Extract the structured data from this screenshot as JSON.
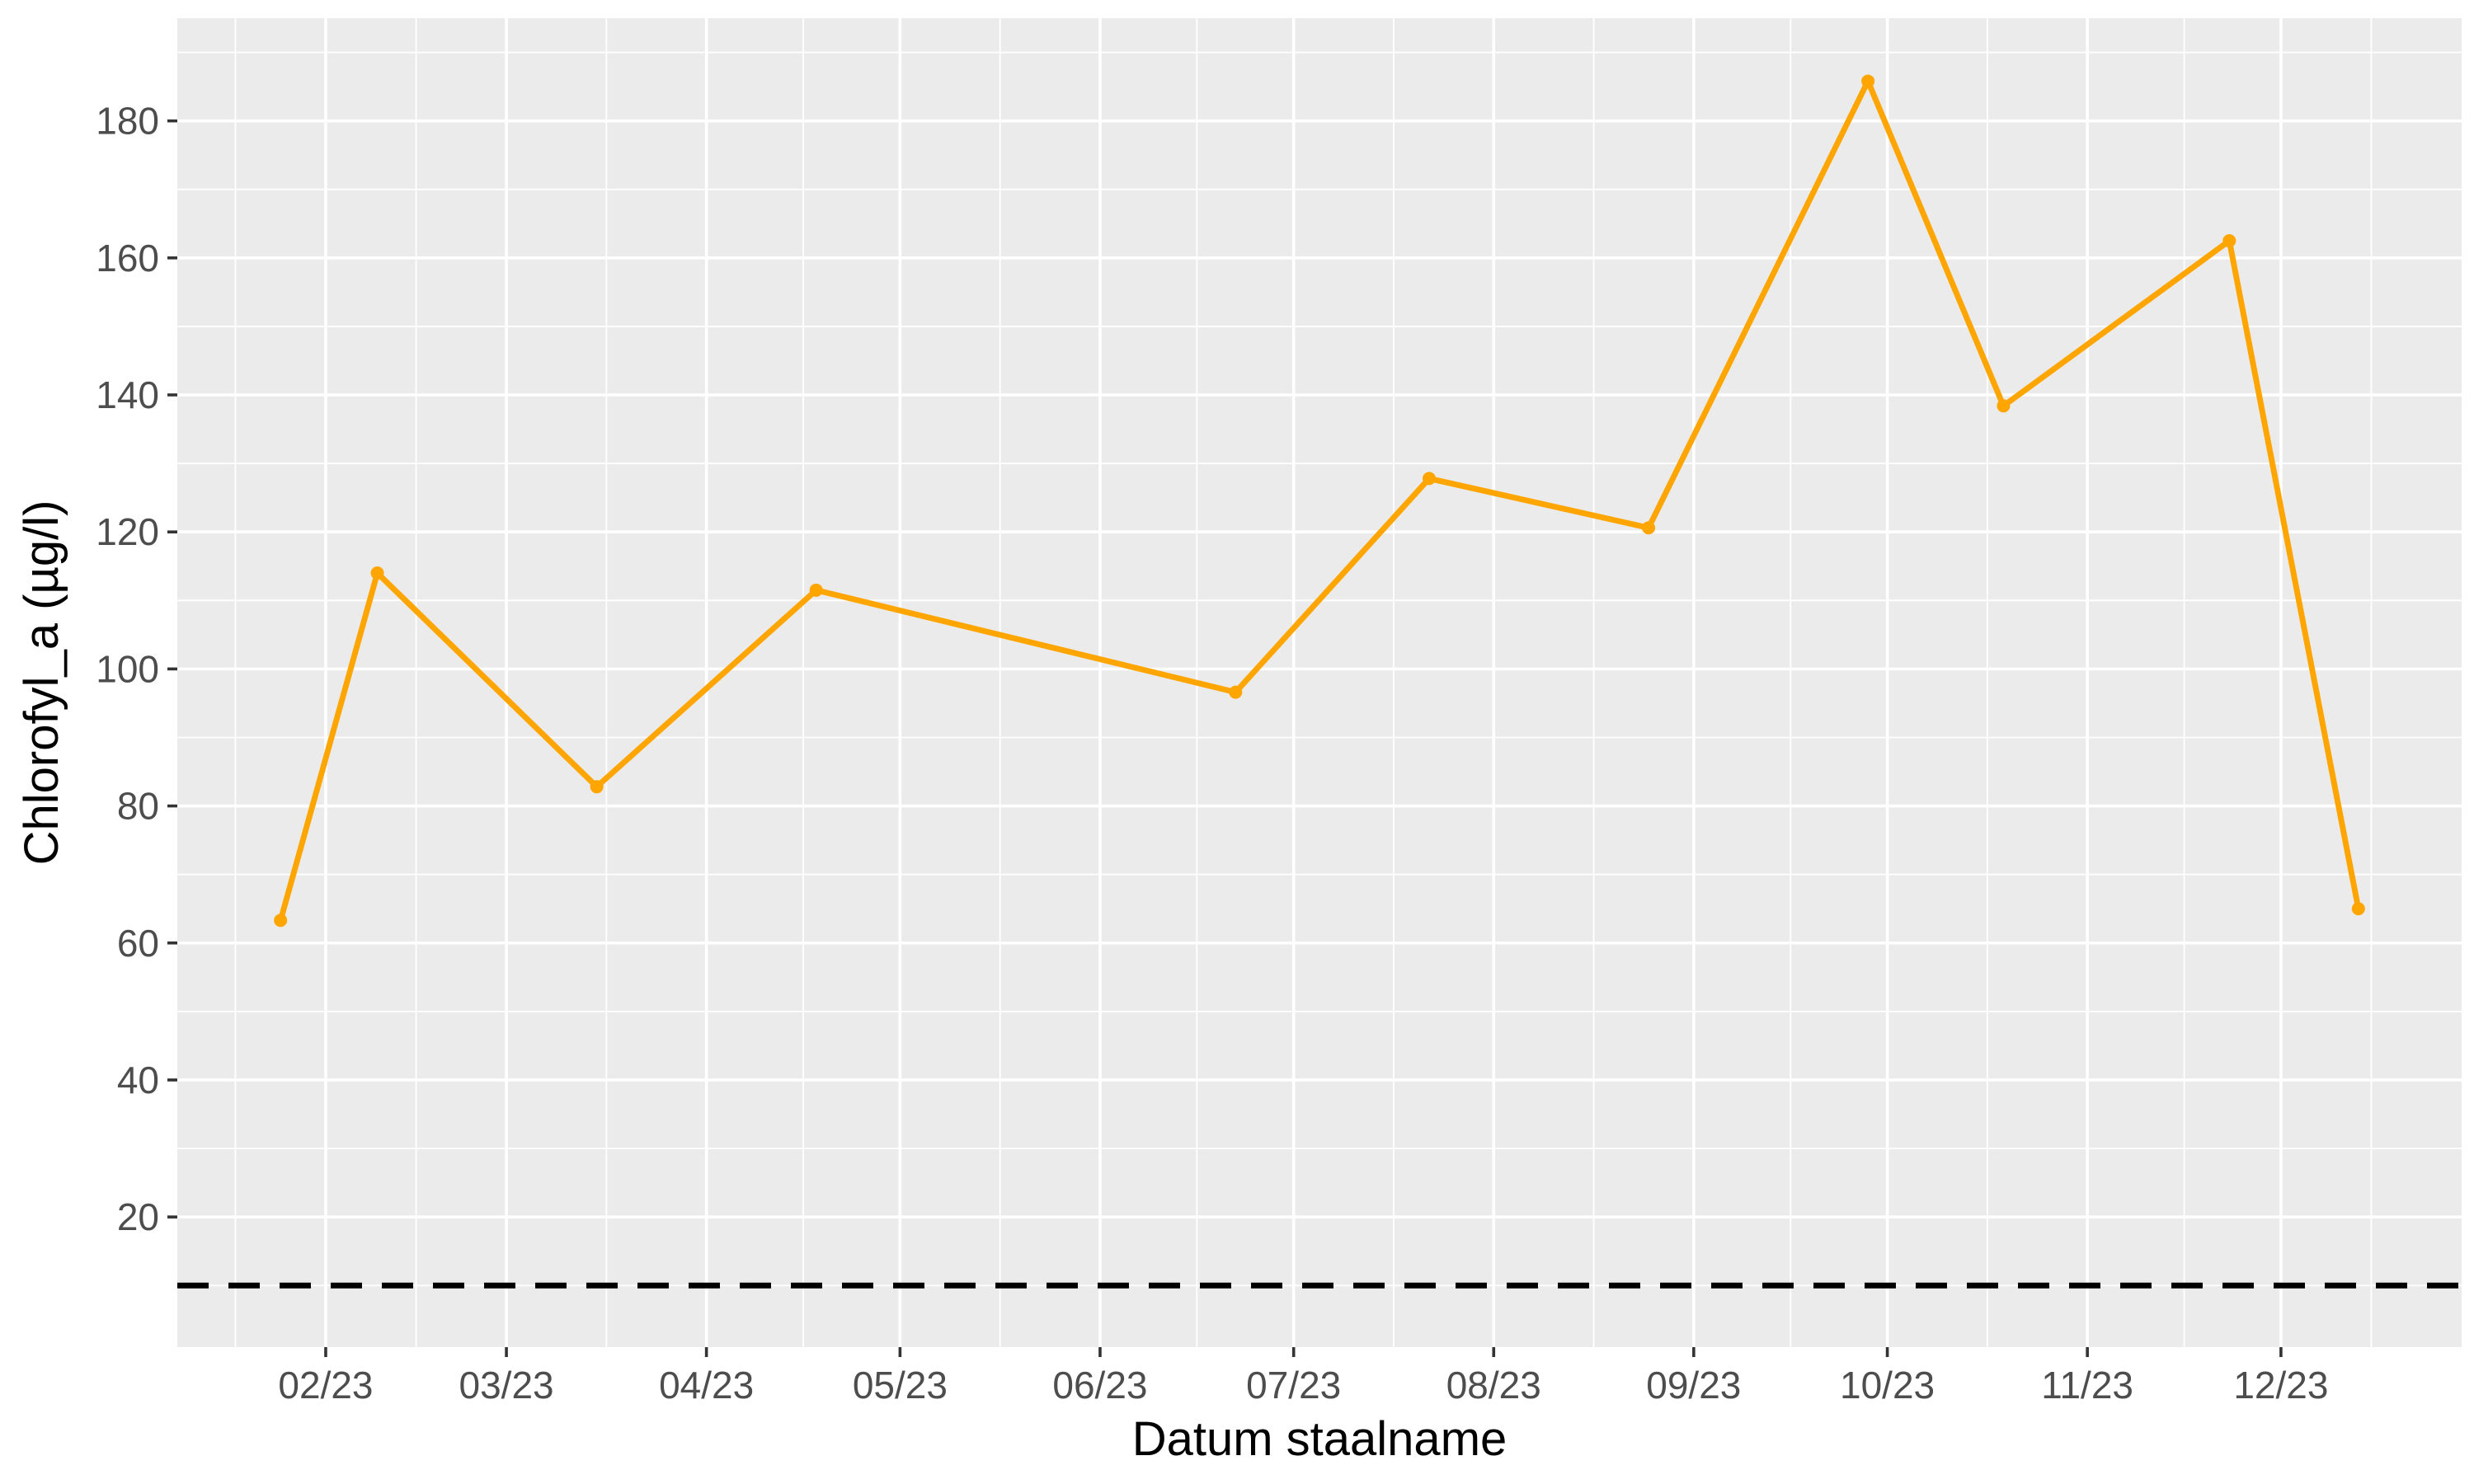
{
  "chart_data": {
    "type": "line",
    "title": "",
    "xlabel": "Datum staalname",
    "ylabel": "Chlorofyl_a (µg/l)",
    "x_tick_labels": [
      "02/23",
      "03/23",
      "04/23",
      "05/23",
      "06/23",
      "07/23",
      "08/23",
      "09/23",
      "10/23",
      "11/23",
      "12/23"
    ],
    "y_tick_labels": [
      "20",
      "40",
      "60",
      "80",
      "100",
      "120",
      "140",
      "160",
      "180"
    ],
    "xlim": [
      "2023-01-09",
      "2023-12-29"
    ],
    "ylim": [
      1,
      195
    ],
    "grid": true,
    "series": [
      {
        "x": [
          "2023-01-25",
          "2023-02-09",
          "2023-03-15",
          "2023-04-18",
          "2023-06-22",
          "2023-07-22",
          "2023-08-25",
          "2023-09-28",
          "2023-10-19",
          "2023-11-23",
          "2023-12-13"
        ],
        "y": [
          63.3,
          114,
          82.8,
          111.5,
          96.6,
          127.8,
          120.6,
          185.8,
          138.4,
          162.5,
          65
        ]
      }
    ],
    "reference_line": {
      "y": 10,
      "style": "dashed"
    },
    "colors": {
      "series": "#FFA500",
      "reference": "#000000",
      "panel": "#EBEBEB",
      "grid": "#FFFFFF"
    }
  }
}
